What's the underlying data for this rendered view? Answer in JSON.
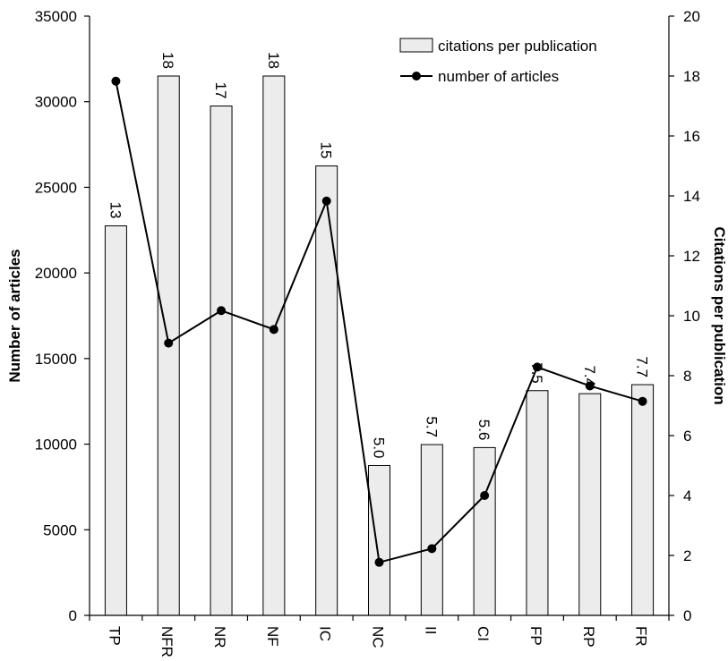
{
  "chart_data": {
    "type": "bar",
    "categories": [
      "TP",
      "NFR",
      "NR",
      "NF",
      "IC",
      "NC",
      "II",
      "CI",
      "FP",
      "RP",
      "FR"
    ],
    "bar_series": {
      "name": "citations per publication",
      "axis": "right",
      "values": [
        13,
        18,
        17,
        18,
        15,
        5.0,
        5.7,
        5.6,
        7.5,
        7.4,
        7.7
      ],
      "labels": [
        "13",
        "18",
        "17",
        "18",
        "15",
        "5.0",
        "5.7",
        "5.6",
        "7.5",
        "7.4",
        "7.7"
      ],
      "color": "#ececec"
    },
    "line_series": {
      "name": "number of articles",
      "axis": "left",
      "type": "line",
      "values": [
        31200,
        15900,
        17800,
        16700,
        24200,
        3100,
        3900,
        7000,
        14500,
        13400,
        12500
      ],
      "color": "#000000"
    },
    "ylabel": "Number of articles",
    "y2label": "Citations per publication",
    "ylim": [
      0,
      35000
    ],
    "y2lim": [
      0,
      20
    ],
    "yticks": [
      "0",
      "5000",
      "10000",
      "15000",
      "20000",
      "25000",
      "30000",
      "35000"
    ],
    "y2ticks": [
      "0",
      "2",
      "4",
      "6",
      "8",
      "10",
      "12",
      "14",
      "16",
      "18",
      "20"
    ],
    "legend_position": "top-right",
    "grid": false
  }
}
